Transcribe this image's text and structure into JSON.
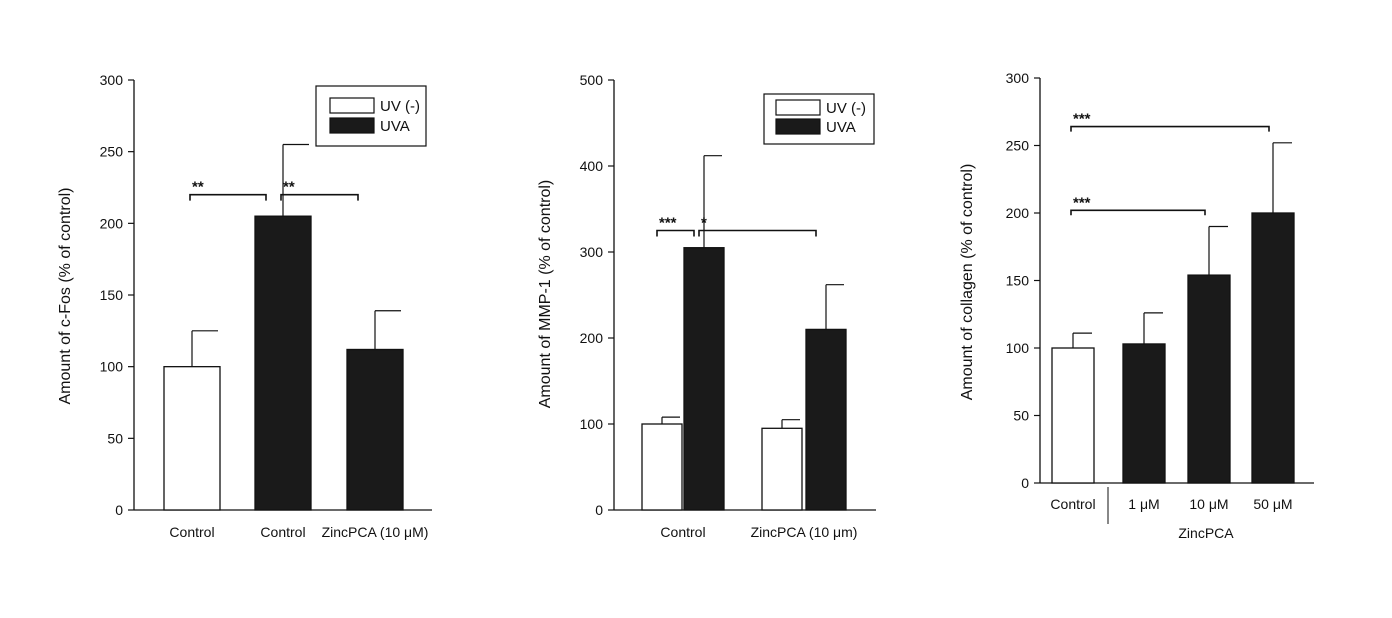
{
  "chart_data": [
    {
      "type": "bar",
      "ylabel": "Amount of c-Fos (% of control)",
      "ylim": [
        0,
        300
      ],
      "yticks": [
        0,
        50,
        100,
        150,
        200,
        250,
        300
      ],
      "legend": {
        "placement": "top-right",
        "entries": [
          {
            "label": "UV (-)",
            "color": "#ffffff"
          },
          {
            "label": "UVA",
            "color": "#1a1a1a"
          }
        ]
      },
      "bars": [
        {
          "label": "Control",
          "value": 100,
          "error": 25,
          "color": "#ffffff"
        },
        {
          "label": "Control",
          "value": 205,
          "error": 50,
          "color": "#1a1a1a"
        },
        {
          "label": "ZincPCA (10 μM)",
          "value": 112,
          "error": 27,
          "color": "#1a1a1a"
        }
      ],
      "significance": [
        {
          "from": 0,
          "to": 1,
          "label": "**",
          "y": 220
        },
        {
          "from": 1,
          "to": 2,
          "label": "**",
          "y": 220
        }
      ]
    },
    {
      "type": "bar",
      "ylabel": "Amount of MMP-1 (% of control)",
      "ylim": [
        0,
        500
      ],
      "yticks": [
        0,
        100,
        200,
        300,
        400,
        500
      ],
      "legend": {
        "placement": "top-right",
        "entries": [
          {
            "label": "UV (-)",
            "color": "#ffffff"
          },
          {
            "label": "UVA",
            "color": "#1a1a1a"
          }
        ]
      },
      "categories": [
        "Control",
        "ZincPCA (10 μm)"
      ],
      "series": [
        {
          "values": [
            100,
            95
          ],
          "errors": [
            8,
            10
          ],
          "color": "#ffffff"
        },
        {
          "values": [
            305,
            210
          ],
          "errors": [
            107,
            52
          ],
          "color": "#1a1a1a"
        }
      ],
      "significance": [
        {
          "from": [
            0,
            0
          ],
          "to": [
            0,
            1
          ],
          "label": "***",
          "y": 325
        },
        {
          "from": [
            0,
            1
          ],
          "to": [
            1,
            1
          ],
          "label": "*",
          "y": 325
        }
      ]
    },
    {
      "type": "bar",
      "ylabel": "Amount of collagen (% of control)",
      "ylim": [
        0,
        300
      ],
      "yticks": [
        0,
        50,
        100,
        150,
        200,
        250,
        300
      ],
      "bars": [
        {
          "label": "Control",
          "value": 100,
          "error": 11,
          "color": "#ffffff"
        },
        {
          "label": "1 μM",
          "value": 103,
          "error": 23,
          "color": "#1a1a1a"
        },
        {
          "label": "10 μM",
          "value": 154,
          "error": 36,
          "color": "#1a1a1a"
        },
        {
          "label": "50 μM",
          "value": 200,
          "error": 52,
          "color": "#1a1a1a"
        }
      ],
      "group_label": "ZincPCA",
      "significance": [
        {
          "from": 0,
          "to": 3,
          "label": "***",
          "y": 264
        },
        {
          "from": 0,
          "to": 2,
          "label": "***",
          "y": 202
        }
      ]
    }
  ]
}
